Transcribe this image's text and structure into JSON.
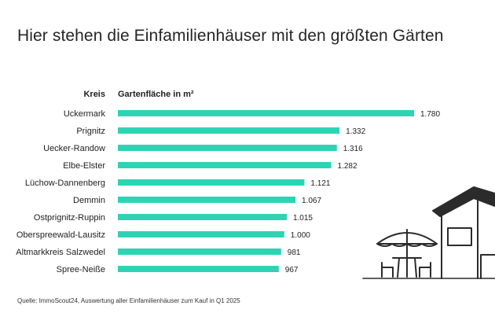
{
  "title": "Hier stehen die Einfamilienhäuser mit den größten Gärten",
  "table_header": {
    "category": "Kreis",
    "value": "Gartenfläche in m²"
  },
  "source": "Quelle: ImmoScout24, Auswertung aller Einfamilienhäuser zum Kauf in Q1 2025",
  "colors": {
    "bar": "#2ed3b4",
    "text": "#1f1f1f",
    "illustration": "#2b2b2b"
  },
  "chart_data": {
    "type": "bar",
    "orientation": "horizontal",
    "categories": [
      "Uckermark",
      "Prignitz",
      "Uecker-Randow",
      "Elbe-Elster",
      "Lüchow-Dannenberg",
      "Demmin",
      "Ostprignitz-Ruppin",
      "Oberspreewald-Lausitz",
      "Altmarkkreis Salzwedel",
      "Spree-Neiße"
    ],
    "values": [
      1780,
      1332,
      1316,
      1282,
      1121,
      1067,
      1015,
      1000,
      981,
      967
    ],
    "value_labels": [
      "1.780",
      "1.332",
      "1.316",
      "1.282",
      "1.121",
      "1.067",
      "1.015",
      "1.000",
      "981",
      "967"
    ],
    "xlim": [
      0,
      1780
    ],
    "grid": false,
    "legend": "none"
  }
}
